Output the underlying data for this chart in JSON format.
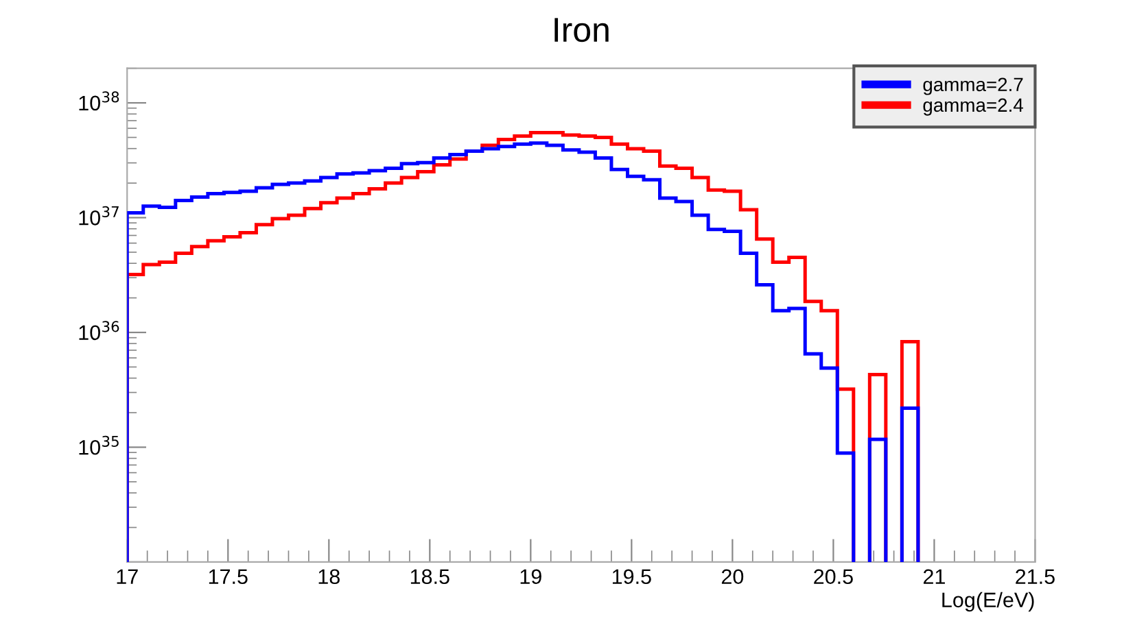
{
  "chart_data": {
    "type": "histogram",
    "title": "Iron",
    "xlabel": "Log(E/eV)",
    "bins": [
      17,
      17.08,
      17.16,
      17.24,
      17.32,
      17.4,
      17.48,
      17.56,
      17.64,
      17.72,
      17.8,
      17.88,
      17.96,
      18.04,
      18.12,
      18.2,
      18.28,
      18.36,
      18.44,
      18.52,
      18.6,
      18.68,
      18.76,
      18.84,
      18.92,
      19,
      19.08,
      19.16,
      19.24,
      19.32,
      19.4,
      19.48,
      19.56,
      19.64,
      19.72,
      19.8,
      19.88,
      19.96,
      20.04,
      20.12,
      20.2,
      20.28,
      20.36,
      20.44,
      20.52,
      20.6,
      20.68,
      20.76,
      20.84,
      20.92
    ],
    "series": [
      {
        "name": "gamma=2.7",
        "color": "#0000ff",
        "values": [
          1.1e+37,
          1.26e+37,
          1.23e+37,
          1.41e+37,
          1.51e+37,
          1.62e+37,
          1.66e+37,
          1.7e+37,
          1.82e+37,
          1.95e+37,
          2e+37,
          2.09e+37,
          2.24e+37,
          2.4e+37,
          2.45e+37,
          2.57e+37,
          2.69e+37,
          2.95e+37,
          3.02e+37,
          3.31e+37,
          3.55e+37,
          3.8e+37,
          3.98e+37,
          4.17e+37,
          4.37e+37,
          4.47e+37,
          4.27e+37,
          3.89e+37,
          3.72e+37,
          3.31e+37,
          2.63e+37,
          2.29e+37,
          2.14e+37,
          1.48e+37,
          1.38e+37,
          1.05e+37,
          7.9e+36,
          7.6e+36,
          4.9e+36,
          2.6e+36,
          1.55e+36,
          1.62e+36,
          6.5e+35,
          4.9e+35,
          8.9e+34,
          null,
          1.17e+35,
          null,
          2.19e+35
        ]
      },
      {
        "name": "gamma=2.4",
        "color": "#ff0000",
        "values": [
          3.2e+36,
          3.9e+36,
          4.1e+36,
          4.9e+36,
          5.6e+36,
          6.3e+36,
          6.8e+36,
          7.4e+36,
          8.7e+36,
          9.8e+36,
          1.05e+37,
          1.2e+37,
          1.35e+37,
          1.48e+37,
          1.62e+37,
          1.78e+37,
          2e+37,
          2.24e+37,
          2.51e+37,
          2.88e+37,
          3.24e+37,
          3.8e+37,
          4.27e+37,
          4.79e+37,
          5.13e+37,
          5.5e+37,
          5.5e+37,
          5.25e+37,
          5.13e+37,
          5e+37,
          4.37e+37,
          3.98e+37,
          3.8e+37,
          2.82e+37,
          2.69e+37,
          2.24e+37,
          1.74e+37,
          1.7e+37,
          1.17e+37,
          6.5e+36,
          4.1e+36,
          4.5e+36,
          1.86e+36,
          1.55e+36,
          3.2e+35,
          null,
          4.3e+35,
          null,
          8.3e+35
        ]
      }
    ],
    "log": "y",
    "xlim": [
      17,
      21.5
    ],
    "xticks": [
      17,
      17.5,
      18,
      18.5,
      19,
      19.5,
      20,
      20.5,
      21,
      21.5
    ],
    "ylim": [
      1e+34,
      2e+38
    ],
    "yticks": [
      {
        "value": 1e+34,
        "label": null
      },
      {
        "value": 1e+35,
        "label": "10$^{35}$"
      },
      {
        "value": 1e+36,
        "label": "10$^{36}$"
      },
      {
        "value": 1e+37,
        "label": "10$^{37}$"
      },
      {
        "value": 1e+38,
        "label": "10$^{38}$"
      }
    ],
    "legend": "top right",
    "grid": false
  }
}
